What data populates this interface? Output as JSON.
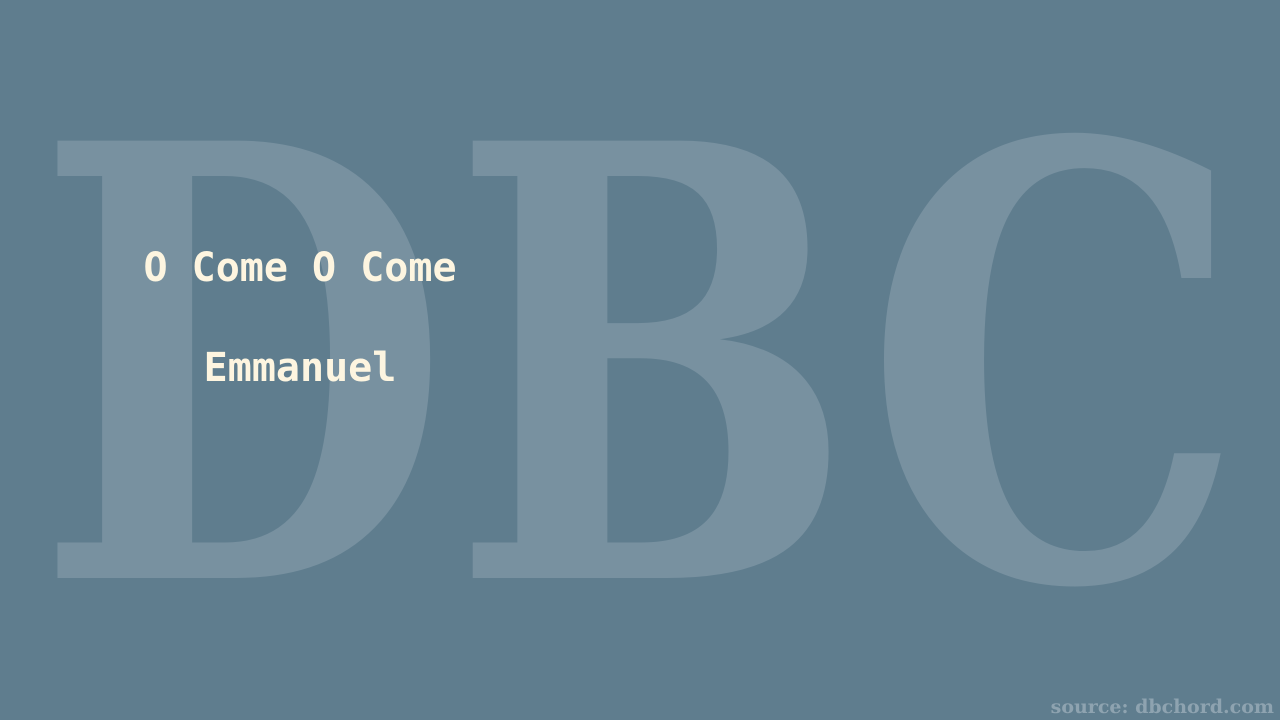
{
  "watermark": {
    "text": "DBC"
  },
  "song": {
    "title_line_1": "O Come O Come",
    "title_line_2": "Emmanuel"
  },
  "source": {
    "text": "source: dbchord.com"
  },
  "colors": {
    "background": "#5f7d8e",
    "watermark": "#7891a0",
    "title": "#fdf5e0",
    "source": "#8ea3b0"
  }
}
